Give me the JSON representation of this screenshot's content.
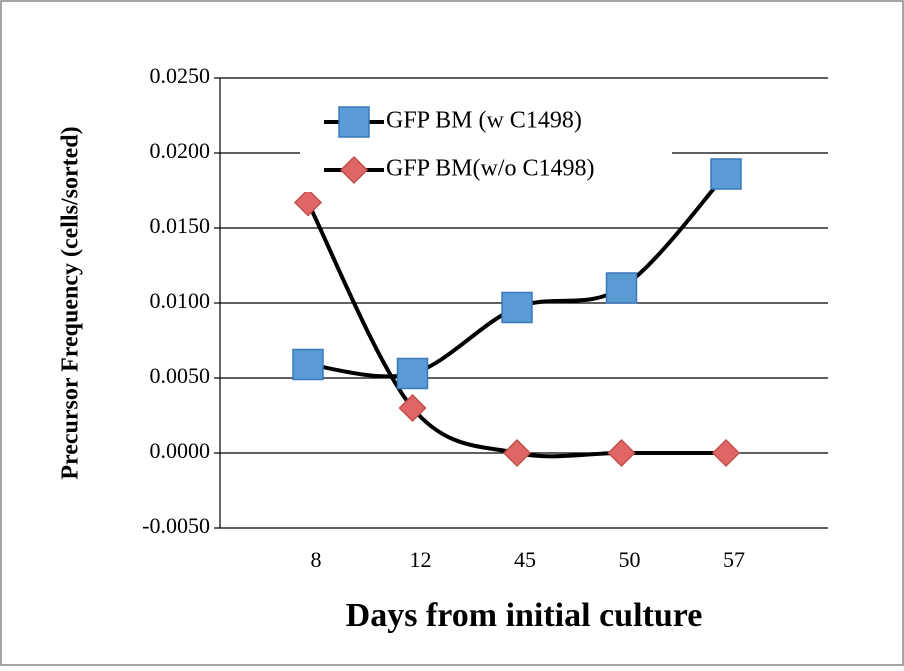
{
  "chart_data": {
    "type": "line",
    "x_label": "Days from initial culture",
    "y_label": "Precursor Frequency (cells/sorted)",
    "categories": [
      "8",
      "12",
      "45",
      "50",
      "57"
    ],
    "series": [
      {
        "name": "GFP BM (w C1498)",
        "color": "#5b9bd5",
        "marker": "square",
        "values": [
          0.0059,
          0.0053,
          0.0097,
          0.011,
          0.0186
        ]
      },
      {
        "name": "GFP BM(w/o C1498)",
        "color": "#e06666",
        "marker": "diamond",
        "values": [
          0.0167,
          0.003,
          0.0,
          0.0,
          0.0
        ]
      }
    ],
    "ylim": [
      -0.005,
      0.025
    ],
    "yticks": [
      {
        "value": -0.005,
        "label": "-0.0050"
      },
      {
        "value": 0,
        "label": "0.0000"
      },
      {
        "value": 0.005,
        "label": "0.0050"
      },
      {
        "value": 0.01,
        "label": "0.0100"
      },
      {
        "value": 0.015,
        "label": "0.0150"
      },
      {
        "value": 0.02,
        "label": "0.0200"
      },
      {
        "value": 0.025,
        "label": "0.0250"
      }
    ],
    "grid": true,
    "smooth": true,
    "line_color": "#000000"
  }
}
